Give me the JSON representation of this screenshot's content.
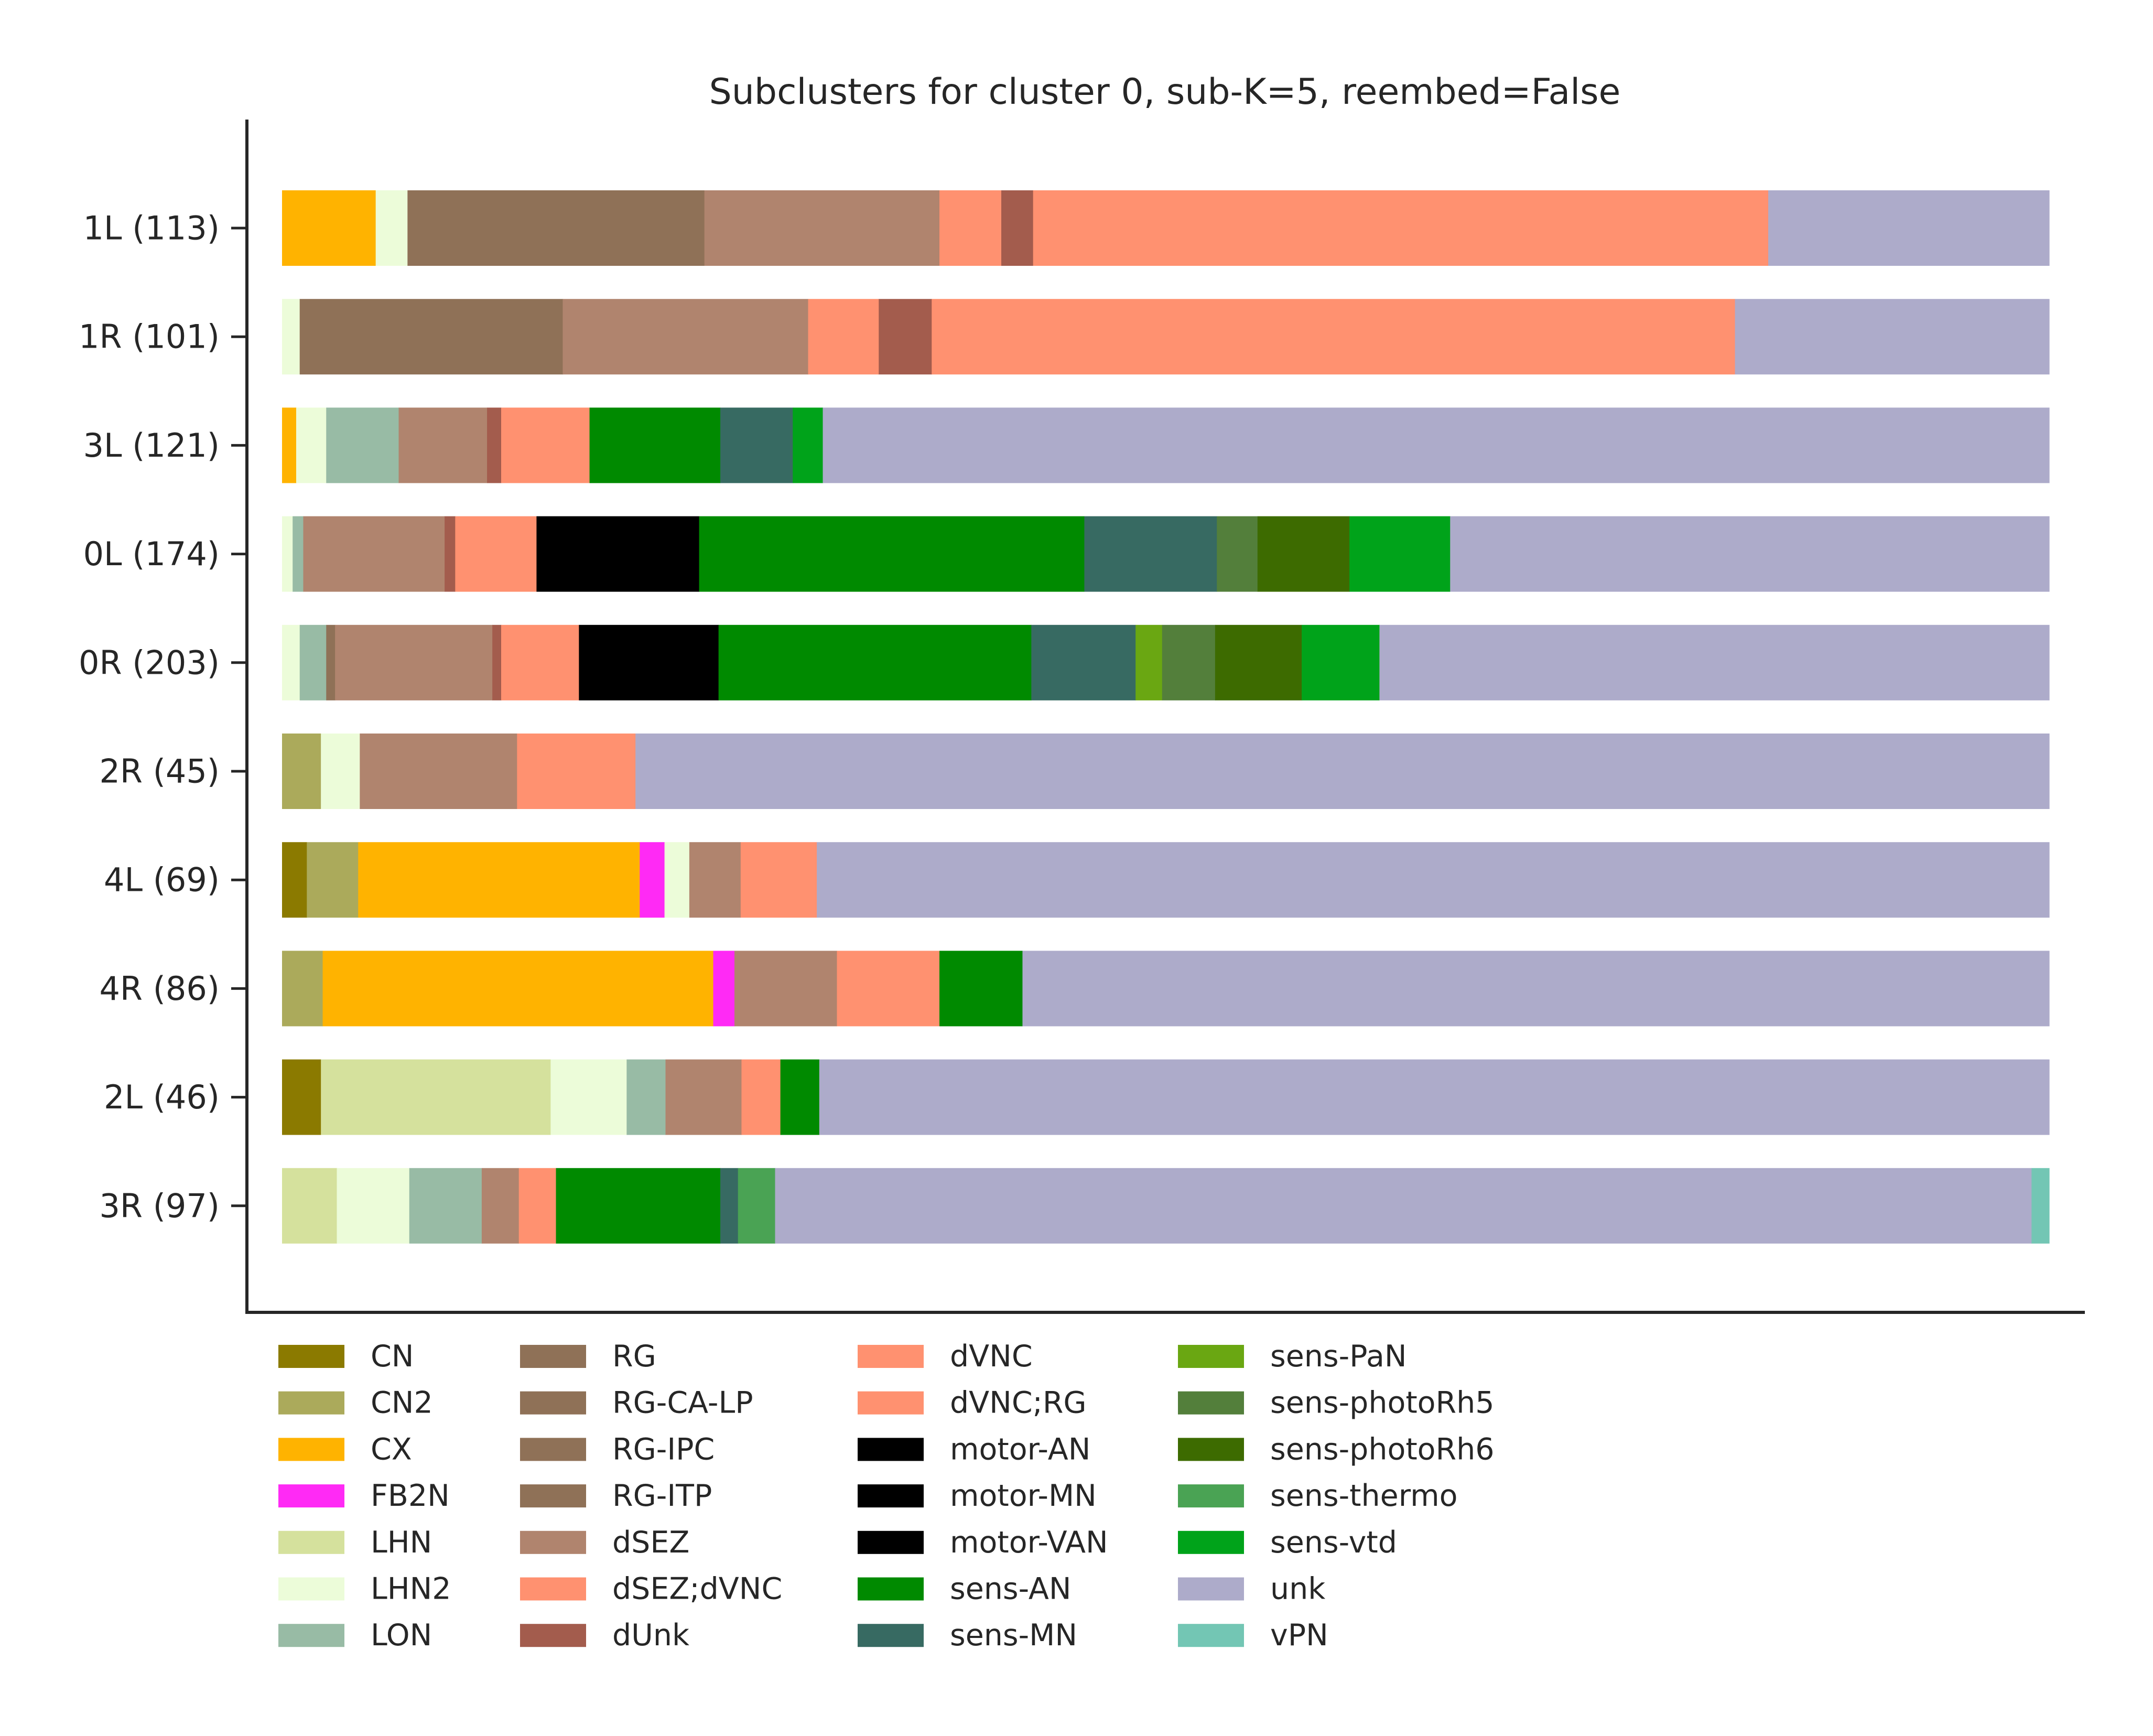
{
  "chart_data": {
    "type": "bar",
    "orientation": "horizontal-stacked-proportion",
    "title": "Subclusters for cluster 0, sub-K=5, reembed=False",
    "xlabel": "",
    "ylabel": "",
    "xlim": [
      0,
      1
    ],
    "grid": false,
    "legend_position": "bottom, 4 columns",
    "categories": [
      "1L (113)",
      "1R (101)",
      "3L (121)",
      "0L (174)",
      "0R (203)",
      "2R (45)",
      "4L (69)",
      "4R (86)",
      "2L (46)",
      "3R (97)"
    ],
    "legend": [
      {
        "name": "CN",
        "color": "#8B7A00"
      },
      {
        "name": "CN2",
        "color": "#ABAA5B"
      },
      {
        "name": "CX",
        "color": "#FFB300"
      },
      {
        "name": "FB2N",
        "color": "#FF2AF5"
      },
      {
        "name": "LHN",
        "color": "#D5E19D"
      },
      {
        "name": "LHN2",
        "color": "#ECFCD9"
      },
      {
        "name": "LON",
        "color": "#98BBA5"
      },
      {
        "name": "RG",
        "color": "#8F7157"
      },
      {
        "name": "RG-CA-LP",
        "color": "#8F7157"
      },
      {
        "name": "RG-IPC",
        "color": "#8F7157"
      },
      {
        "name": "RG-ITP",
        "color": "#8F7157"
      },
      {
        "name": "dSEZ",
        "color": "#B0846E"
      },
      {
        "name": "dSEZ;dVNC",
        "color": "#FF9170"
      },
      {
        "name": "dUnk",
        "color": "#A35C4D"
      },
      {
        "name": "dVNC",
        "color": "#FF9170"
      },
      {
        "name": "dVNC;RG",
        "color": "#FF9170"
      },
      {
        "name": "motor-AN",
        "color": "#000000"
      },
      {
        "name": "motor-MN",
        "color": "#000000"
      },
      {
        "name": "motor-VAN",
        "color": "#000000"
      },
      {
        "name": "sens-AN",
        "color": "#008A00"
      },
      {
        "name": "sens-MN",
        "color": "#376A62"
      },
      {
        "name": "sens-PaN",
        "color": "#6AA712"
      },
      {
        "name": "sens-photoRh5",
        "color": "#537F3B"
      },
      {
        "name": "sens-photoRh6",
        "color": "#3D6B00"
      },
      {
        "name": "sens-thermo",
        "color": "#4AA354"
      },
      {
        "name": "sens-vtd",
        "color": "#00A31A"
      },
      {
        "name": "unk",
        "color": "#ADABCA"
      },
      {
        "name": "vPN",
        "color": "#73C6B4"
      }
    ],
    "bars": [
      {
        "label": "1L (113)",
        "segments": [
          {
            "cls": "CX",
            "value": 0.053
          },
          {
            "cls": "LHN2",
            "value": 0.018
          },
          {
            "cls": "RG",
            "value": 0.168
          },
          {
            "cls": "dSEZ",
            "value": 0.133
          },
          {
            "cls": "dSEZ;dVNC",
            "value": 0.035
          },
          {
            "cls": "dUnk",
            "value": 0.018
          },
          {
            "cls": "dVNC",
            "value": 0.416
          },
          {
            "cls": "unk",
            "value": 0.159
          }
        ]
      },
      {
        "label": "1R (101)",
        "segments": [
          {
            "cls": "LHN2",
            "value": 0.01
          },
          {
            "cls": "RG",
            "value": 0.149
          },
          {
            "cls": "dSEZ",
            "value": 0.139
          },
          {
            "cls": "dSEZ;dVNC",
            "value": 0.04
          },
          {
            "cls": "dUnk",
            "value": 0.03
          },
          {
            "cls": "dVNC",
            "value": 0.455
          },
          {
            "cls": "unk",
            "value": 0.178
          }
        ]
      },
      {
        "label": "3L (121)",
        "segments": [
          {
            "cls": "CX",
            "value": 0.008
          },
          {
            "cls": "LHN2",
            "value": 0.017
          },
          {
            "cls": "LON",
            "value": 0.041
          },
          {
            "cls": "dSEZ",
            "value": 0.05
          },
          {
            "cls": "dUnk",
            "value": 0.008
          },
          {
            "cls": "dSEZ;dVNC",
            "value": 0.05
          },
          {
            "cls": "sens-AN",
            "value": 0.074
          },
          {
            "cls": "sens-MN",
            "value": 0.041
          },
          {
            "cls": "sens-vtd",
            "value": 0.017
          },
          {
            "cls": "unk",
            "value": 0.694
          }
        ]
      },
      {
        "label": "0L (174)",
        "segments": [
          {
            "cls": "LHN2",
            "value": 0.006
          },
          {
            "cls": "LON",
            "value": 0.006
          },
          {
            "cls": "dSEZ",
            "value": 0.08
          },
          {
            "cls": "dUnk",
            "value": 0.006
          },
          {
            "cls": "dSEZ;dVNC",
            "value": 0.046
          },
          {
            "cls": "motor-AN",
            "value": 0.092
          },
          {
            "cls": "sens-AN",
            "value": 0.218
          },
          {
            "cls": "sens-MN",
            "value": 0.075
          },
          {
            "cls": "sens-photoRh5",
            "value": 0.023
          },
          {
            "cls": "sens-photoRh6",
            "value": 0.052
          },
          {
            "cls": "sens-vtd",
            "value": 0.057
          },
          {
            "cls": "unk",
            "value": 0.339
          }
        ]
      },
      {
        "label": "0R (203)",
        "segments": [
          {
            "cls": "LHN2",
            "value": 0.01
          },
          {
            "cls": "LON",
            "value": 0.015
          },
          {
            "cls": "RG",
            "value": 0.005
          },
          {
            "cls": "dSEZ",
            "value": 0.089
          },
          {
            "cls": "dUnk",
            "value": 0.005
          },
          {
            "cls": "dSEZ;dVNC",
            "value": 0.044
          },
          {
            "cls": "motor-AN",
            "value": 0.079
          },
          {
            "cls": "sens-AN",
            "value": 0.177
          },
          {
            "cls": "sens-MN",
            "value": 0.059
          },
          {
            "cls": "sens-PaN",
            "value": 0.015
          },
          {
            "cls": "sens-photoRh5",
            "value": 0.03
          },
          {
            "cls": "sens-photoRh6",
            "value": 0.049
          },
          {
            "cls": "sens-vtd",
            "value": 0.044
          },
          {
            "cls": "unk",
            "value": 0.379
          }
        ]
      },
      {
        "label": "2R (45)",
        "segments": [
          {
            "cls": "CN2",
            "value": 0.022
          },
          {
            "cls": "LHN2",
            "value": 0.022
          },
          {
            "cls": "dSEZ",
            "value": 0.089
          },
          {
            "cls": "dSEZ;dVNC",
            "value": 0.067
          },
          {
            "cls": "unk",
            "value": 0.8
          }
        ]
      },
      {
        "label": "4L (69)",
        "segments": [
          {
            "cls": "CN",
            "value": 0.014
          },
          {
            "cls": "CN2",
            "value": 0.029
          },
          {
            "cls": "CX",
            "value": 0.159
          },
          {
            "cls": "FB2N",
            "value": 0.014
          },
          {
            "cls": "LHN2",
            "value": 0.014
          },
          {
            "cls": "dSEZ",
            "value": 0.029
          },
          {
            "cls": "dSEZ;dVNC",
            "value": 0.043
          },
          {
            "cls": "unk",
            "value": 0.696
          }
        ]
      },
      {
        "label": "4R (86)",
        "segments": [
          {
            "cls": "CN2",
            "value": 0.023
          },
          {
            "cls": "CX",
            "value": 0.221
          },
          {
            "cls": "FB2N",
            "value": 0.012
          },
          {
            "cls": "dSEZ",
            "value": 0.058
          },
          {
            "cls": "dSEZ;dVNC",
            "value": 0.058
          },
          {
            "cls": "sens-AN",
            "value": 0.047
          },
          {
            "cls": "unk",
            "value": 0.581
          }
        ]
      },
      {
        "label": "2L (46)",
        "segments": [
          {
            "cls": "CN",
            "value": 0.022
          },
          {
            "cls": "LHN",
            "value": 0.13
          },
          {
            "cls": "LHN2",
            "value": 0.043
          },
          {
            "cls": "LON",
            "value": 0.022
          },
          {
            "cls": "dSEZ",
            "value": 0.043
          },
          {
            "cls": "dSEZ;dVNC",
            "value": 0.022
          },
          {
            "cls": "sens-AN",
            "value": 0.022
          },
          {
            "cls": "unk",
            "value": 0.696
          }
        ]
      },
      {
        "label": "3R (97)",
        "segments": [
          {
            "cls": "LHN",
            "value": 0.031
          },
          {
            "cls": "LHN2",
            "value": 0.041
          },
          {
            "cls": "LON",
            "value": 0.041
          },
          {
            "cls": "dSEZ",
            "value": 0.021
          },
          {
            "cls": "dSEZ;dVNC",
            "value": 0.021
          },
          {
            "cls": "sens-AN",
            "value": 0.093
          },
          {
            "cls": "sens-MN",
            "value": 0.01
          },
          {
            "cls": "sens-thermo",
            "value": 0.021
          },
          {
            "cls": "unk",
            "value": 0.711
          },
          {
            "cls": "vPN",
            "value": 0.01
          }
        ]
      }
    ]
  }
}
